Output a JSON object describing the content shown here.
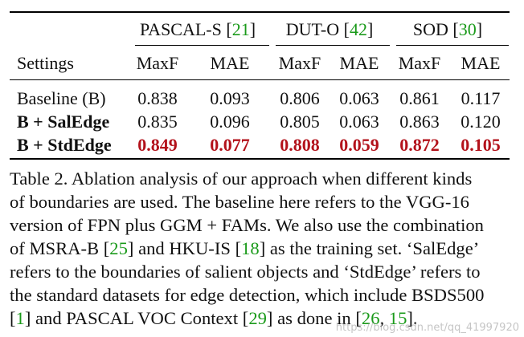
{
  "table": {
    "group_headers": [
      {
        "name": "PASCAL-S",
        "cite": "21"
      },
      {
        "name": "DUT-O",
        "cite": "42"
      },
      {
        "name": "SOD",
        "cite": "30"
      }
    ],
    "settings_label": "Settings",
    "metric_headers": [
      "MaxF",
      "MAE",
      "MaxF",
      "MAE",
      "MaxF",
      "MAE"
    ],
    "rows": [
      {
        "name": "Baseline (B)",
        "values": [
          "0.838",
          "0.093",
          "0.806",
          "0.063",
          "0.861",
          "0.117"
        ]
      },
      {
        "name": "B + SalEdge",
        "values": [
          "0.835",
          "0.096",
          "0.805",
          "0.063",
          "0.863",
          "0.120"
        ]
      },
      {
        "name": "B + StdEdge",
        "values": [
          "0.849",
          "0.077",
          "0.808",
          "0.059",
          "0.872",
          "0.105"
        ]
      }
    ]
  },
  "caption": {
    "line1": "Table 2. Ablation analysis of our approach when different kinds",
    "line2": "of boundaries are used.  The baseline here refers to the VGG-16",
    "line3": "version of FPN plus GGM + FAMs. We also use the combination",
    "line4_a": "of MSRA-B ",
    "line4_cite1": "25",
    "line4_b": " and HKU-IS ",
    "line4_cite2": "18",
    "line4_c": " as the training set.  ‘SalEdge’",
    "line5": "refers to the boundaries of salient objects and ‘StdEdge’ refers to",
    "line6": "the standard datasets for edge detection, which include BSDS500",
    "line7_cite1": "1",
    "line7_a": " and PASCAL VOC Context ",
    "line7_cite2": "29",
    "line7_b": " as done in ",
    "line7_cite3": "26",
    "line7_cite4": "15",
    "line7_end": "."
  },
  "watermark": "https://blog.csdn.net/qq_41997920",
  "colors": {
    "citation": "#1a9a1a",
    "best": "#b3121b"
  }
}
